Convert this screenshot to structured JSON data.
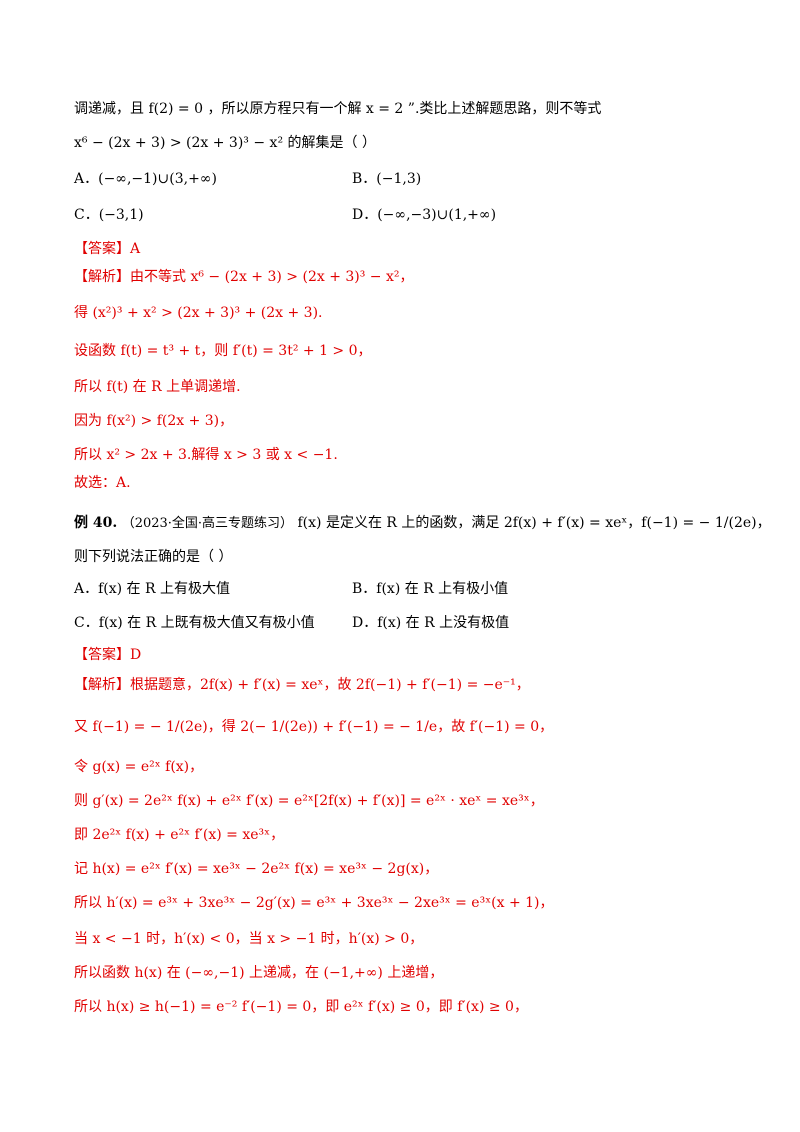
{
  "lines": {
    "l1": "调递减，且 f(2) = 0 ，所以原方程只有一个解 x = 2 ”.类比上述解题思路，则不等式",
    "l2": "x⁶ − (2x + 3) > (2x + 3)³ − x² 的解集是（     ）"
  },
  "q1_options": {
    "A": "A．(−∞,−1)∪(3,+∞)",
    "B": "B．(−1,3)",
    "C": "C．(−3,1)",
    "D": "D．(−∞,−3)∪(1,+∞)"
  },
  "q1_solution": {
    "answer": "【答案】A",
    "s1": "【解析】由不等式 x⁶ − (2x + 3) > (2x + 3)³ − x²，",
    "s2": "得 (x²)³ + x² > (2x + 3)³ + (2x + 3).",
    "s3": "设函数 f(t) = t³ + t，则 f′(t) = 3t² + 1 > 0，",
    "s4": "所以 f(t) 在 R 上单调递增.",
    "s5": "因为 f(x²) > f(2x + 3)，",
    "s6": "所以 x² > 2x + 3.解得 x > 3 或 x < −1.",
    "s7": "故选：A."
  },
  "q2": {
    "label": "例 40.",
    "source": "（2023·全国·高三专题练习）",
    "stem": "f(x) 是定义在 R 上的函数，满足 2f(x) + f′(x) = xeˣ，f(−1) = − 1/(2e)，",
    "stem2": "则下列说法正确的是（          ）"
  },
  "q2_options": {
    "A": "A．f(x) 在 R 上有极大值",
    "B": "B．f(x) 在 R 上有极小值",
    "C": "C．f(x) 在 R 上既有极大值又有极小值",
    "D": "D．f(x) 在 R 上没有极值"
  },
  "q2_solution": {
    "answer": "【答案】D",
    "s1": "【解析】根据题意，2f(x) + f′(x) = xeˣ，故 2f(−1) + f′(−1) = −e⁻¹，",
    "s2": "又 f(−1) = − 1/(2e)，得 2(− 1/(2e)) + f′(−1) = − 1/e，故 f′(−1) = 0，",
    "s3": "令 g(x) = e²ˣ f(x)，",
    "s4": "则 g′(x) = 2e²ˣ f(x) + e²ˣ f′(x) = e²ˣ[2f(x) + f′(x)] = e²ˣ · xeˣ = xe³ˣ，",
    "s5": "即 2e²ˣ f(x) + e²ˣ f′(x) = xe³ˣ，",
    "s6": "记 h(x) = e²ˣ f′(x) = xe³ˣ − 2e²ˣ f(x) = xe³ˣ − 2g(x)，",
    "s7": "所以 h′(x) = e³ˣ + 3xe³ˣ − 2g′(x) = e³ˣ + 3xe³ˣ − 2xe³ˣ = e³ˣ(x + 1)，",
    "s8": "当 x < −1 时，h′(x) < 0，当 x > −1 时，h′(x) > 0，",
    "s9": "所以函数 h(x) 在 (−∞,−1) 上递减，在 (−1,+∞) 上递增，",
    "s10": "所以 h(x) ≥ h(−1) = e⁻² f′(−1) = 0，即 e²ˣ f′(x) ≥ 0，即 f′(x) ≥ 0，"
  }
}
